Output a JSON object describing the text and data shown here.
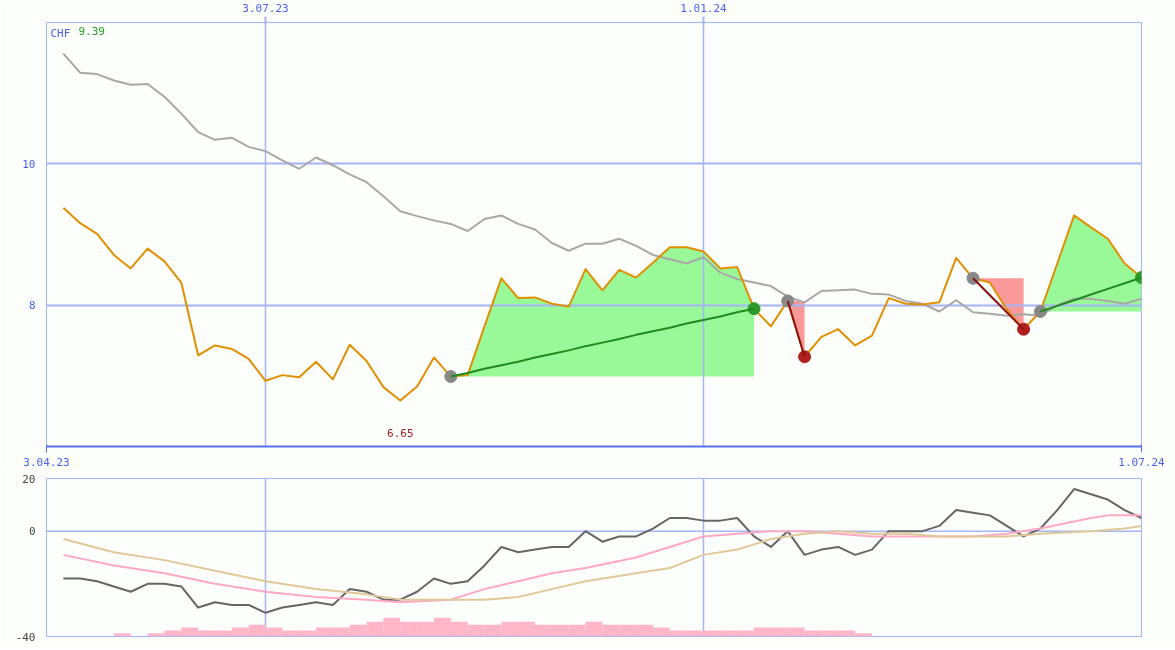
{
  "chart_data": [
    {
      "type": "line",
      "ylabel": "CHF",
      "annotations": [
        "9.39",
        {
          "text": "6.65",
          "x": "2023-08-28",
          "y": 6.65
        }
      ],
      "x": [
        "2023-04-10",
        "2023-04-17",
        "2023-04-24",
        "2023-05-01",
        "2023-05-08",
        "2023-05-15",
        "2023-05-22",
        "2023-05-29",
        "2023-06-05",
        "2023-06-12",
        "2023-06-19",
        "2023-06-26",
        "2023-07-03",
        "2023-07-10",
        "2023-07-17",
        "2023-07-24",
        "2023-07-31",
        "2023-08-07",
        "2023-08-14",
        "2023-08-21",
        "2023-08-28",
        "2023-09-04",
        "2023-09-11",
        "2023-09-18",
        "2023-09-25",
        "2023-10-02",
        "2023-10-09",
        "2023-10-16",
        "2023-10-23",
        "2023-10-30",
        "2023-11-06",
        "2023-11-13",
        "2023-11-20",
        "2023-11-27",
        "2023-12-04",
        "2023-12-11",
        "2023-12-18",
        "2023-12-25",
        "2024-01-01",
        "2024-01-08",
        "2024-01-15",
        "2024-01-22",
        "2024-01-29",
        "2024-02-05",
        "2024-02-12",
        "2024-02-19",
        "2024-02-26",
        "2024-03-04",
        "2024-03-11",
        "2024-03-18",
        "2024-03-25",
        "2024-04-01",
        "2024-04-08",
        "2024-04-15",
        "2024-04-22",
        "2024-04-29",
        "2024-05-06",
        "2024-05-13",
        "2024-05-20",
        "2024-05-27",
        "2024-06-03",
        "2024-06-10",
        "2024-06-17",
        "2024-06-24",
        "2024-07-01"
      ],
      "xlim": [
        "2023-04-03",
        "2024-07-01"
      ],
      "xticks": [
        {
          "value": "2023-04-03",
          "label": "3.04.23"
        },
        {
          "value": "2024-07-01",
          "label": "1.07.24"
        }
      ],
      "x2lim": [
        "2023-04-03",
        "2024-07-01"
      ],
      "x2ticks": [
        {
          "value": "2023-07-03",
          "label": "3.07.23"
        },
        {
          "value": "2024-01-01",
          "label": "1.01.24"
        }
      ],
      "ylim": [
        6,
        12
      ],
      "yticks": [
        8,
        10
      ],
      "grid": true,
      "series": [
        {
          "color": "#a8a8a8",
          "values": [
            11.56,
            11.29,
            11.27,
            11.18,
            11.12,
            11.13,
            10.95,
            10.71,
            10.45,
            10.34,
            10.37,
            10.24,
            10.18,
            10.05,
            9.93,
            10.09,
            9.98,
            9.85,
            9.74,
            9.54,
            9.33,
            9.26,
            9.2,
            9.15,
            9.05,
            9.22,
            9.27,
            9.15,
            9.07,
            8.88,
            8.77,
            8.87,
            8.87,
            8.94,
            8.84,
            8.71,
            8.65,
            8.59,
            8.68,
            8.46,
            8.37,
            8.32,
            8.27,
            8.12,
            8.04,
            8.2,
            8.21,
            8.22,
            8.16,
            8.15,
            8.06,
            8.02,
            7.91,
            8.07,
            7.9,
            7.88,
            7.85,
            7.87,
            7.85,
            8.0,
            8.09,
            8.09,
            8.06,
            8.02,
            8.09
          ]
        },
        {
          "color": "#e09000",
          "values": [
            9.38,
            9.16,
            9.01,
            8.71,
            8.52,
            8.8,
            8.62,
            8.32,
            7.29,
            7.43,
            7.38,
            7.24,
            6.93,
            7.01,
            6.98,
            7.2,
            6.95,
            7.44,
            7.21,
            6.84,
            6.65,
            6.85,
            7.26,
            6.99,
            7.01,
            7.7,
            8.38,
            8.1,
            8.11,
            8.02,
            7.98,
            8.51,
            8.21,
            8.5,
            8.39,
            8.6,
            8.82,
            8.82,
            8.76,
            8.52,
            8.54,
            7.95,
            7.7,
            8.06,
            7.27,
            7.55,
            7.66,
            7.43,
            7.57,
            8.1,
            8.02,
            8.01,
            8.04,
            8.67,
            8.38,
            8.32,
            7.94,
            7.66,
            7.91,
            8.59,
            9.27,
            9.1,
            8.94,
            8.59,
            8.39
          ]
        },
        {
          "type": "scatter",
          "marker": "circle",
          "color": "#888888",
          "x": [
            "2023-09-18",
            "2024-02-05",
            "2024-04-22",
            "2024-05-20"
          ],
          "values": [
            6.99,
            8.06,
            8.38,
            7.91
          ]
        },
        {
          "type": "scatter",
          "marker": "circle",
          "color": "#2a9a2a",
          "x": [
            "2024-01-22",
            "2024-07-01"
          ],
          "values": [
            7.95,
            8.39
          ]
        },
        {
          "type": "scatter",
          "marker": "circle",
          "color": "#b01e1e",
          "x": [
            "2024-02-12",
            "2024-05-13"
          ],
          "values": [
            7.27,
            7.66
          ]
        },
        {
          "type": "line",
          "color": "#1f8a1f",
          "x": [
            "2023-09-18",
            "2023-09-25",
            "2023-10-02",
            "2023-10-09",
            "2023-10-16",
            "2023-10-23",
            "2023-10-30",
            "2023-11-06",
            "2023-11-13",
            "2023-11-20",
            "2023-11-27",
            "2023-12-04",
            "2023-12-11",
            "2023-12-18",
            "2023-12-25",
            "2024-01-01",
            "2024-01-08",
            "2024-01-15",
            "2024-01-22"
          ],
          "values": [
            6.99,
            7.04,
            7.1,
            7.15,
            7.2,
            7.26,
            7.31,
            7.36,
            7.42,
            7.47,
            7.52,
            7.58,
            7.63,
            7.68,
            7.74,
            7.79,
            7.84,
            7.9,
            7.95
          ],
          "lower": [
            6.99,
            6.99,
            6.99,
            6.99,
            6.99,
            6.99,
            6.99,
            6.99,
            6.99,
            6.99,
            6.99,
            6.99,
            6.99,
            6.99,
            6.99,
            6.99,
            6.99,
            6.99,
            6.99
          ],
          "upper": [
            6.99,
            7.01,
            7.7,
            8.38,
            8.1,
            8.11,
            8.02,
            7.98,
            8.51,
            8.21,
            8.5,
            8.39,
            8.6,
            8.82,
            8.82,
            8.76,
            8.52,
            8.54,
            7.95
          ]
        },
        {
          "type": "line",
          "color": "#8c1010",
          "x": [
            "2024-02-05",
            "2024-02-12"
          ],
          "values": [
            8.06,
            7.27
          ],
          "lower": [
            8.06,
            7.27
          ],
          "upper": [
            8.06,
            8.06
          ]
        },
        {
          "type": "line",
          "color": "#8c1010",
          "x": [
            "2024-04-22",
            "2024-04-29",
            "2024-05-06",
            "2024-05-13"
          ],
          "values": [
            8.38,
            8.14,
            7.9,
            7.66
          ],
          "lower": [
            8.38,
            8.32,
            7.94,
            7.66
          ],
          "upper": [
            8.38,
            8.38,
            8.38,
            8.38
          ]
        },
        {
          "type": "line",
          "color": "#1f8a1f",
          "x": [
            "2024-05-20",
            "2024-05-27",
            "2024-06-03",
            "2024-06-10",
            "2024-06-17",
            "2024-06-24",
            "2024-07-01"
          ],
          "values": [
            7.91,
            7.99,
            8.07,
            8.15,
            8.23,
            8.31,
            8.39
          ],
          "lower": [
            7.91,
            7.91,
            7.91,
            7.91,
            7.91,
            7.91,
            7.91
          ],
          "upper": [
            7.91,
            8.59,
            9.27,
            9.1,
            8.94,
            8.59,
            8.39
          ]
        }
      ]
    },
    {
      "type": "line",
      "x": [
        "2023-04-10",
        "2023-04-17",
        "2023-04-24",
        "2023-05-01",
        "2023-05-08",
        "2023-05-15",
        "2023-05-22",
        "2023-05-29",
        "2023-06-05",
        "2023-06-12",
        "2023-06-19",
        "2023-06-26",
        "2023-07-03",
        "2023-07-10",
        "2023-07-17",
        "2023-07-24",
        "2023-07-31",
        "2023-08-07",
        "2023-08-14",
        "2023-08-21",
        "2023-08-28",
        "2023-09-04",
        "2023-09-11",
        "2023-09-18",
        "2023-09-25",
        "2023-10-02",
        "2023-10-09",
        "2023-10-16",
        "2023-10-23",
        "2023-10-30",
        "2023-11-06",
        "2023-11-13",
        "2023-11-20",
        "2023-11-27",
        "2023-12-04",
        "2023-12-11",
        "2023-12-18",
        "2023-12-25",
        "2024-01-01",
        "2024-01-08",
        "2024-01-15",
        "2024-01-22",
        "2024-01-29",
        "2024-02-05",
        "2024-02-12",
        "2024-02-19",
        "2024-02-26",
        "2024-03-04",
        "2024-03-11",
        "2024-03-18",
        "2024-03-25",
        "2024-04-01",
        "2024-04-08",
        "2024-04-15",
        "2024-04-22",
        "2024-04-29",
        "2024-05-06",
        "2024-05-13",
        "2024-05-20",
        "2024-05-27",
        "2024-06-03",
        "2024-06-10",
        "2024-06-17",
        "2024-06-24",
        "2024-07-01"
      ],
      "xlim": [
        "2023-04-03",
        "2024-07-01"
      ],
      "tick_labels": "y",
      "ylim": [
        -40,
        20
      ],
      "yticks": [
        -40,
        0,
        20
      ],
      "ref_lines": [
        {
          "axis": "x",
          "value": "2023-07-03",
          "color": "#a4b4f6"
        },
        {
          "axis": "x",
          "value": "2024-01-01",
          "color": "#a4b4f6"
        },
        {
          "axis": "y",
          "value": 0,
          "color": "#a4b4f6"
        }
      ],
      "series": [
        {
          "type": "bar",
          "color": "#ffb6c8",
          "x": [
            "2023-05-04T12:00",
            "2023-05-18T12:00",
            "2023-05-25T12:00",
            "2023-06-01T12:00",
            "2023-06-08T12:00",
            "2023-06-15T12:00",
            "2023-06-22T12:00",
            "2023-06-29T12:00",
            "2023-07-06T12:00",
            "2023-07-13T12:00",
            "2023-07-20T12:00",
            "2023-07-27T12:00",
            "2023-08-03T12:00",
            "2023-08-10T12:00",
            "2023-08-17T12:00",
            "2023-08-24T12:00",
            "2023-08-31T12:00",
            "2023-09-07T12:00",
            "2023-09-14T12:00",
            "2023-09-21T12:00",
            "2023-09-28T12:00",
            "2023-10-05T12:00",
            "2023-10-12T12:00",
            "2023-10-19T12:00",
            "2023-10-26T12:00",
            "2023-11-02T12:00",
            "2023-11-09T12:00",
            "2023-11-16T12:00",
            "2023-11-23T12:00",
            "2023-11-30T12:00",
            "2023-12-07T12:00",
            "2023-12-14T12:00",
            "2023-12-21T12:00",
            "2023-12-28T12:00",
            "2024-01-04T12:00",
            "2024-01-11T12:00",
            "2024-01-18T12:00",
            "2024-01-25T12:00",
            "2024-02-01T12:00",
            "2024-02-08T12:00",
            "2024-02-15T12:00",
            "2024-02-22T12:00",
            "2024-02-29T12:00",
            "2024-03-07T12:00"
          ],
          "base": [
            -40,
            -40,
            -40,
            -40,
            -40,
            -40,
            -40,
            -40,
            -40,
            -40,
            -40,
            -40,
            -40,
            -40,
            -40,
            -40,
            -40,
            -40,
            -40,
            -40,
            -40,
            -40,
            -40,
            -40,
            -40,
            -40,
            -40,
            -40,
            -40,
            -40,
            -40,
            -40,
            -40,
            -40,
            -40,
            -40,
            -40,
            -40,
            -40,
            -40,
            -40,
            -40,
            -40,
            -40
          ],
          "values": [
            1.2,
            1.2,
            2.3,
            3.4,
            2.3,
            2.3,
            3.4,
            4.5,
            3.4,
            2.3,
            2.3,
            3.4,
            3.4,
            4.5,
            5.6,
            7.1,
            5.6,
            5.6,
            7.1,
            5.6,
            4.5,
            4.5,
            5.6,
            5.6,
            4.5,
            4.5,
            4.5,
            5.6,
            4.5,
            4.5,
            4.5,
            3.4,
            2.3,
            2.3,
            2.3,
            2.3,
            2.3,
            3.4,
            3.4,
            3.4,
            2.3,
            2.3,
            2.3,
            1.2
          ]
        },
        {
          "color": "#666666",
          "values": [
            -18,
            -18,
            -19,
            -21,
            -23,
            -20,
            -20,
            -21,
            -29,
            -27,
            -28,
            -28,
            -31,
            -29,
            -28,
            -27,
            -28,
            -22,
            -23,
            -26,
            -26,
            -23,
            -18,
            -20,
            -19,
            -13,
            -6,
            -8,
            -7,
            -6,
            -6,
            0,
            -4,
            -2,
            -2,
            1,
            5,
            5,
            4,
            4,
            5,
            -2,
            -6,
            0,
            -9,
            -7,
            -6,
            -9,
            -7,
            0,
            0,
            0,
            2,
            8,
            7,
            6,
            2,
            -2,
            1,
            8,
            16,
            14,
            12,
            8,
            5
          ]
        },
        {
          "color": "#ffa8c4",
          "x": [
            "2023-04-10",
            "2023-05-01",
            "2023-05-22",
            "2023-06-12",
            "2023-07-03",
            "2023-07-24",
            "2023-08-14",
            "2023-08-28",
            "2023-09-18",
            "2023-10-02",
            "2023-10-16",
            "2023-10-30",
            "2023-11-13",
            "2023-12-04",
            "2023-12-18",
            "2024-01-01",
            "2024-01-15",
            "2024-01-29",
            "2024-02-12",
            "2024-02-26",
            "2024-03-11",
            "2024-03-25",
            "2024-04-08",
            "2024-04-22",
            "2024-05-06",
            "2024-05-20",
            "2024-06-10",
            "2024-06-17",
            "2024-07-01"
          ],
          "values": [
            -9,
            -13,
            -16,
            -20,
            -23,
            -25,
            -26,
            -27,
            -26,
            -22,
            -19,
            -16,
            -14,
            -10,
            -6,
            -2,
            -1,
            0,
            0,
            -1,
            -2,
            -2,
            -2,
            -2,
            -1,
            1,
            5,
            6,
            6
          ]
        },
        {
          "color": "#e0c898",
          "x": [
            "2023-04-10",
            "2023-05-01",
            "2023-05-22",
            "2023-06-12",
            "2023-07-03",
            "2023-07-24",
            "2023-08-14",
            "2023-08-28",
            "2023-09-18",
            "2023-10-02",
            "2023-10-16",
            "2023-10-30",
            "2023-11-13",
            "2023-12-04",
            "2023-12-18",
            "2024-01-01",
            "2024-01-15",
            "2024-01-29",
            "2024-02-12",
            "2024-02-26",
            "2024-03-11",
            "2024-03-25",
            "2024-04-08",
            "2024-04-22",
            "2024-05-06",
            "2024-05-20",
            "2024-06-10",
            "2024-06-24",
            "2024-07-01"
          ],
          "values": [
            -3,
            -8,
            -11,
            -15,
            -19,
            -22,
            -24,
            -26,
            -26,
            -26,
            -25,
            -22,
            -19,
            -16,
            -14,
            -9,
            -7,
            -3,
            -1,
            0,
            -1,
            -1,
            -2,
            -2,
            -2,
            -1,
            0,
            1,
            2
          ]
        }
      ]
    }
  ]
}
